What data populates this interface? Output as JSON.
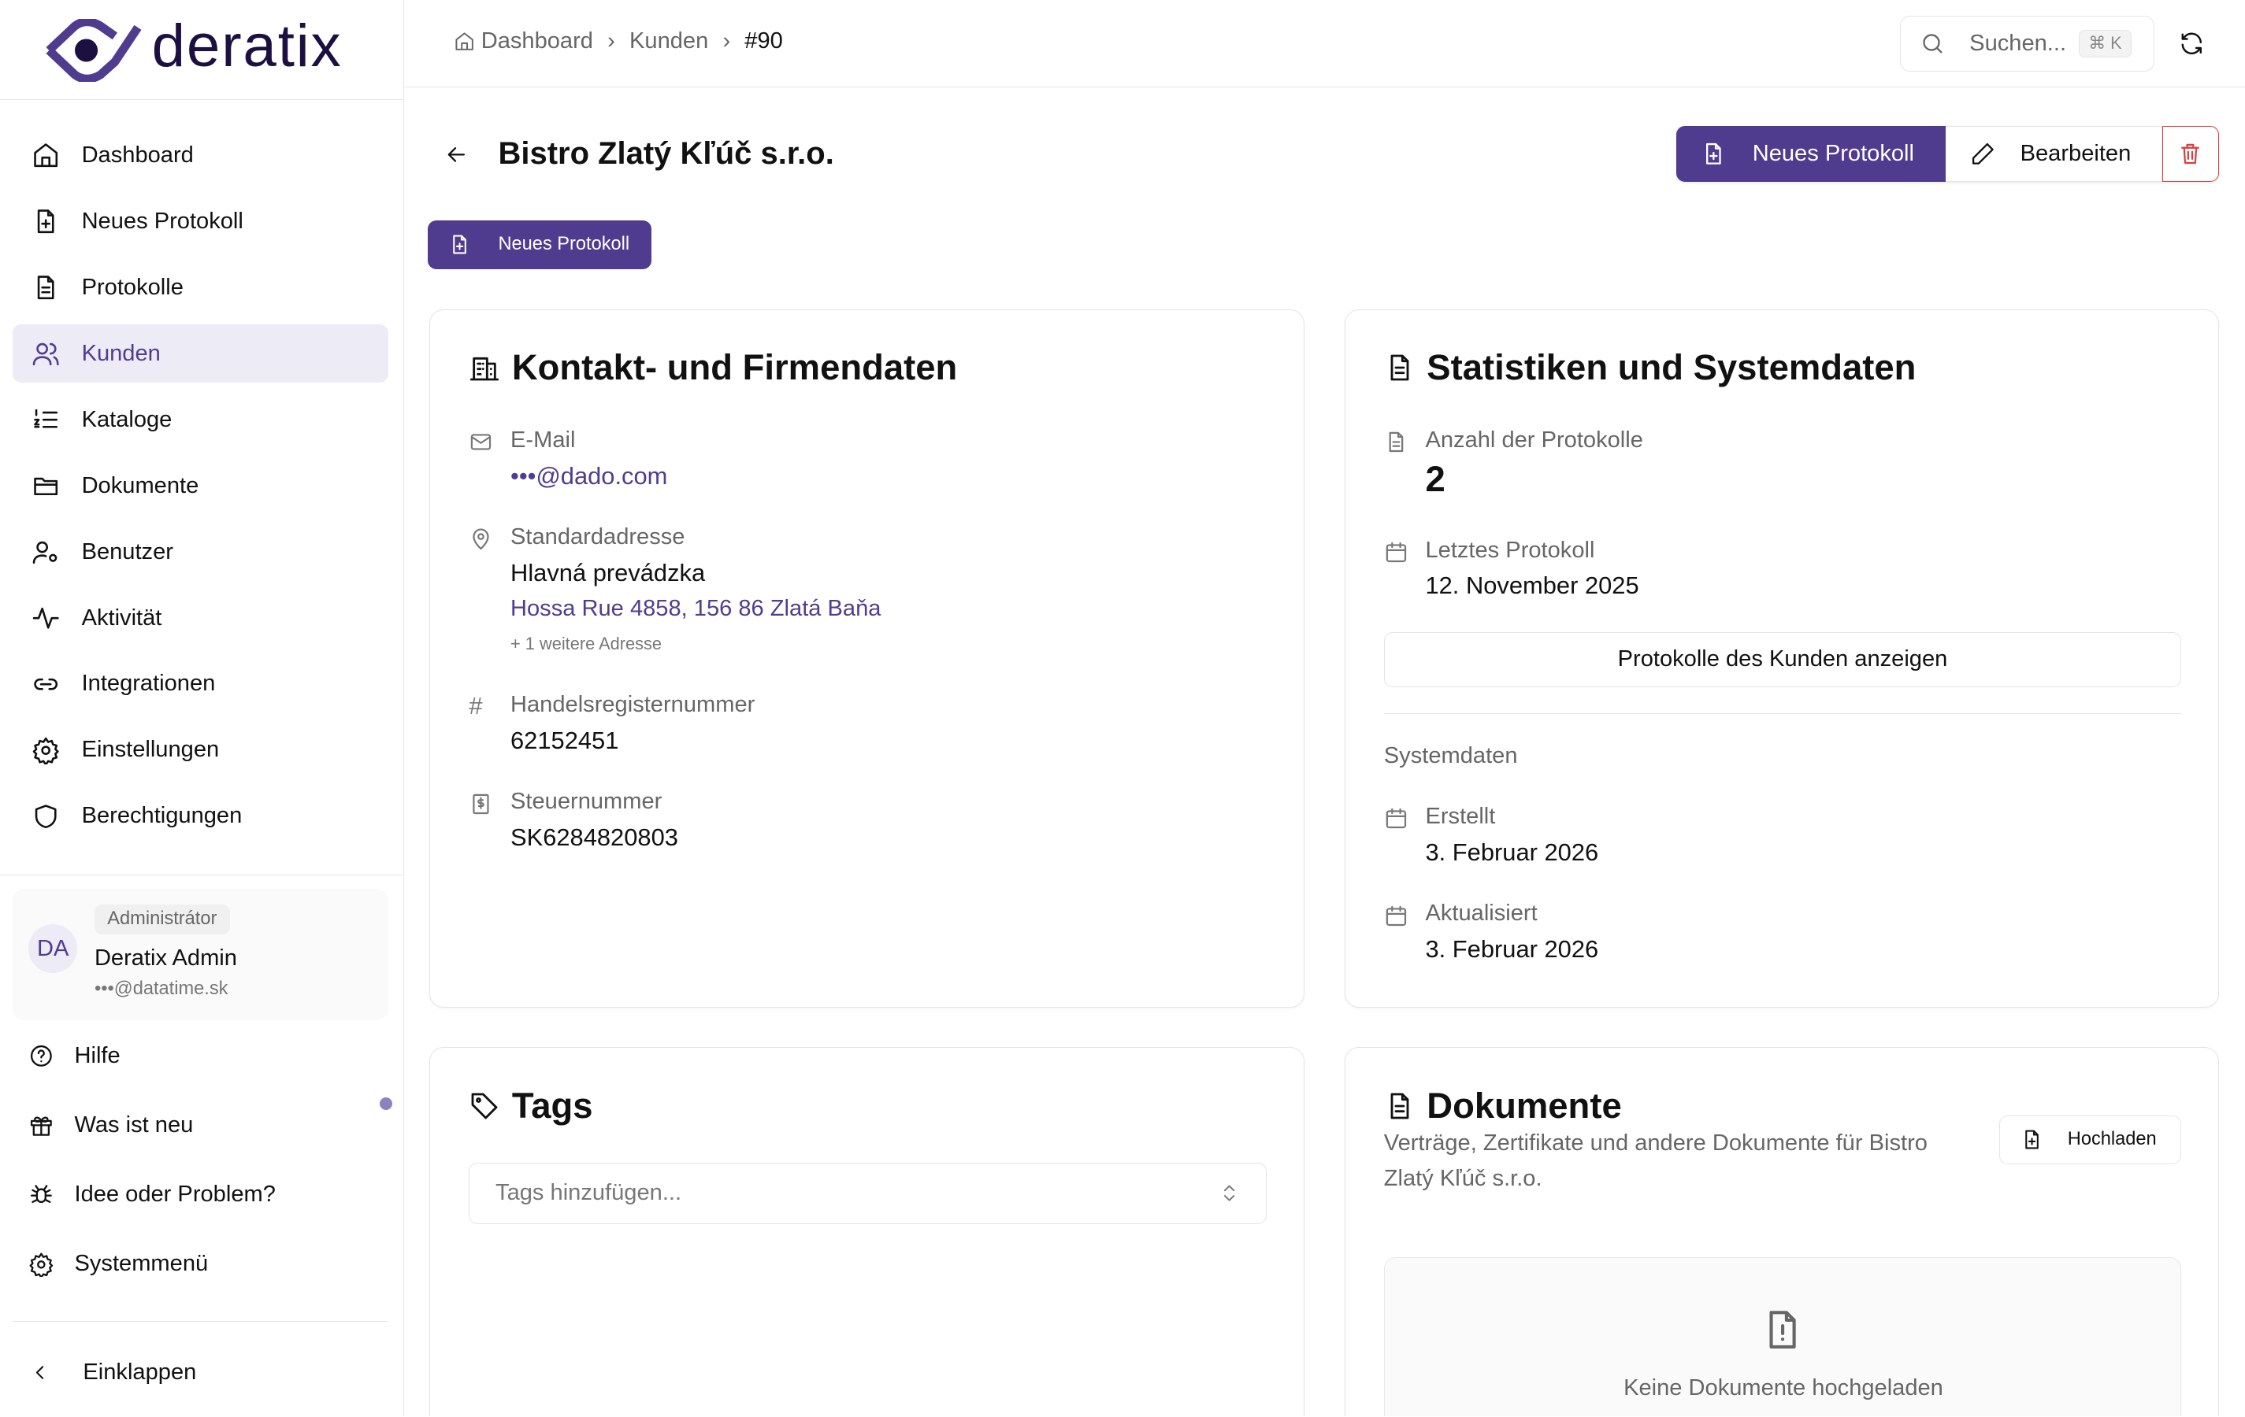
{
  "brand": {
    "name": "deratix",
    "accent": "#503c8f",
    "danger": "#dc3c3c"
  },
  "sidebar": {
    "items": [
      {
        "label": "Dashboard",
        "icon": "home-icon"
      },
      {
        "label": "Neues Protokoll",
        "icon": "file-plus-icon"
      },
      {
        "label": "Protokolle",
        "icon": "file-text-icon"
      },
      {
        "label": "Kunden",
        "icon": "users-icon",
        "active": true
      },
      {
        "label": "Kataloge",
        "icon": "list-ordered-icon"
      },
      {
        "label": "Dokumente",
        "icon": "folder-icon"
      },
      {
        "label": "Benutzer",
        "icon": "user-cog-icon"
      },
      {
        "label": "Aktivität",
        "icon": "activity-icon"
      },
      {
        "label": "Integrationen",
        "icon": "link-icon"
      },
      {
        "label": "Einstellungen",
        "icon": "gear-icon"
      },
      {
        "label": "Berechtigungen",
        "icon": "shield-icon"
      }
    ],
    "user": {
      "initials": "DA",
      "role": "Administrátor",
      "name": "Deratix Admin",
      "email": "•••@datatime.sk"
    },
    "footer": [
      {
        "label": "Hilfe",
        "icon": "help-icon"
      },
      {
        "label": "Was ist neu",
        "icon": "gift-icon"
      },
      {
        "label": "Idee oder Problem?",
        "icon": "bug-icon"
      },
      {
        "label": "Systemmenü",
        "icon": "gear-icon"
      }
    ],
    "collapse": "Einklappen"
  },
  "header": {
    "breadcrumb": [
      "Dashboard",
      "Kunden",
      "#90"
    ],
    "search_placeholder": "Suchen...",
    "search_shortcut": "⌘ K"
  },
  "page": {
    "title": "Bistro Zlatý Kľúč s.r.o.",
    "new_protocol": "Neues Protokoll",
    "edit": "Bearbeiten",
    "new_protocol_small": "Neues Protokoll"
  },
  "contact": {
    "title": "Kontakt- und Firmendaten",
    "email_label": "E-Mail",
    "email": "•••@dado.com",
    "address_label": "Standardadresse",
    "address_name": "Hlavná prevádzka",
    "address": "Hossa Rue 4858, 156 86 Zlatá Baňa",
    "more_addresses": "+ 1 weitere Adresse",
    "reg_label": "Handelsregisternummer",
    "reg": "62152451",
    "tax_label": "Steuernummer",
    "tax": "SK6284820803"
  },
  "stats": {
    "title": "Statistiken und Systemdaten",
    "count_label": "Anzahl der Protokolle",
    "count": "2",
    "last_label": "Letztes Protokoll",
    "last": "12. November 2025",
    "show_button": "Protokolle des Kunden anzeigen",
    "system_label": "Systemdaten",
    "created_label": "Erstellt",
    "created": "3. Februar 2026",
    "updated_label": "Aktualisiert",
    "updated": "3. Februar 2026"
  },
  "tags": {
    "title": "Tags",
    "placeholder": "Tags hinzufügen..."
  },
  "documents": {
    "title": "Dokumente",
    "description": "Verträge, Zertifikate und andere Dokumente für Bistro Zlatý Kľúč s.r.o.",
    "upload": "Hochladen",
    "empty": "Keine Dokumente hochgeladen"
  }
}
